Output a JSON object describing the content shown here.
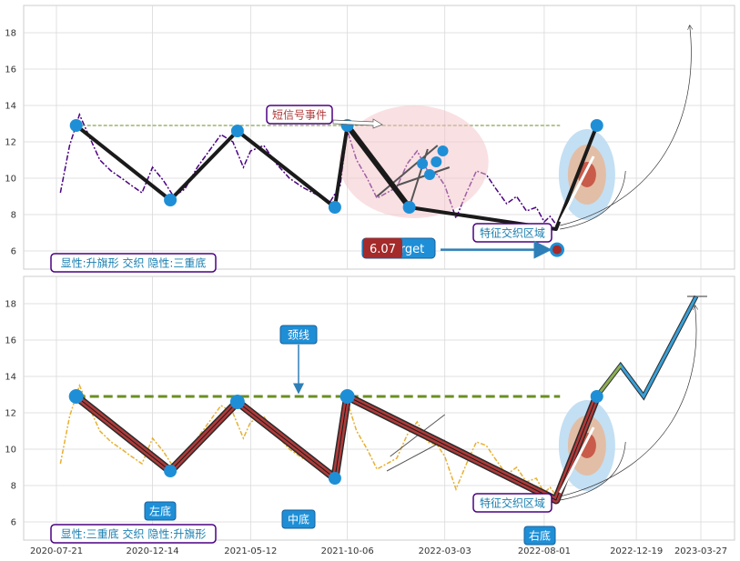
{
  "chart_data": [
    {
      "type": "line",
      "panel": "top",
      "ylim": [
        5,
        19.5
      ],
      "yticks": [
        6,
        8,
        10,
        12,
        14,
        16,
        18
      ],
      "grid": true,
      "colors": {
        "price": "#4b0082",
        "pattern": "#1a1a1a",
        "node": "#1e8fd6",
        "neckline": "#6b8e23",
        "ellipse": "#f4c2c8"
      },
      "series": [
        {
          "x": [
            "2020-07-27",
            "2020-08-10",
            "2020-08-25",
            "2020-09-10",
            "2020-09-25",
            "2020-10-12",
            "2020-10-28",
            "2020-11-12",
            "2020-11-28",
            "2020-12-14",
            "2020-12-30",
            "2021-01-15",
            "2021-02-01",
            "2021-02-20",
            "2021-03-10",
            "2021-03-28",
            "2021-04-15",
            "2021-05-01",
            "2021-05-12",
            "2021-06-01",
            "2021-06-20",
            "2021-07-10",
            "2021-07-30",
            "2021-08-20",
            "2021-09-08",
            "2021-09-25",
            "2021-10-06",
            "2021-10-20",
            "2021-11-05",
            "2021-11-20",
            "2021-12-05",
            "2021-12-20",
            "2022-01-05",
            "2022-01-20",
            "2022-02-05",
            "2022-02-20",
            "2022-03-03",
            "2022-03-20",
            "2022-04-05",
            "2022-04-20",
            "2022-05-05",
            "2022-05-20",
            "2022-06-05",
            "2022-06-20",
            "2022-07-05",
            "2022-07-20",
            "2022-08-01",
            "2022-08-10",
            "2022-08-20"
          ],
          "y": [
            9.2,
            11.8,
            13.5,
            12.2,
            11.0,
            10.4,
            10.0,
            9.6,
            9.2,
            10.6,
            9.9,
            9.0,
            9.4,
            10.6,
            11.5,
            12.4,
            12.0,
            10.6,
            11.5,
            11.8,
            10.8,
            10.0,
            9.5,
            9.1,
            8.6,
            9.6,
            12.6,
            11.0,
            10.0,
            8.9,
            9.2,
            9.5,
            10.8,
            11.5,
            10.4,
            10.2,
            9.6,
            7.8,
            9.2,
            10.4,
            10.2,
            9.4,
            8.6,
            9.0,
            8.2,
            8.4,
            7.6,
            7.9,
            7.4
          ]
        }
      ],
      "pattern_x": [
        "2020-08-20",
        "2021-01-10",
        "2021-04-22",
        "2021-09-17",
        "2021-10-06",
        "2022-01-08",
        "2022-08-19",
        "2022-10-20"
      ],
      "pattern_y": [
        12.9,
        8.8,
        12.6,
        8.4,
        12.9,
        8.4,
        7.2,
        12.9
      ],
      "neckline_y": 12.9,
      "short_signal_label": "短信号事件",
      "target_value": "6.07",
      "target_suffix": "arget",
      "zone_label": "特征交织区域",
      "bottom_label": "显性:升旗形 交织 隐性:三重底"
    },
    {
      "type": "line",
      "panel": "bottom",
      "ylim": [
        5,
        19.5
      ],
      "yticks": [
        6,
        8,
        10,
        12,
        14,
        16,
        18
      ],
      "xticks": [
        "2020-07-21",
        "2020-12-14",
        "2021-05-12",
        "2021-10-06",
        "2022-03-03",
        "2022-08-01",
        "2022-12-19",
        "2023-03-27"
      ],
      "grid": true,
      "colors": {
        "price": "#e8b030",
        "pattern": "#b03a3a",
        "node": "#1e8fd6",
        "neckline": "#6b8e23",
        "projection": "#3aa0d8"
      },
      "series": [
        {
          "x": [
            "2020-07-27",
            "2020-08-10",
            "2020-08-25",
            "2020-09-10",
            "2020-09-25",
            "2020-10-12",
            "2020-10-28",
            "2020-11-12",
            "2020-11-28",
            "2020-12-14",
            "2020-12-30",
            "2021-01-15",
            "2021-02-01",
            "2021-02-20",
            "2021-03-10",
            "2021-03-28",
            "2021-04-15",
            "2021-05-01",
            "2021-05-12",
            "2021-06-01",
            "2021-06-20",
            "2021-07-10",
            "2021-07-30",
            "2021-08-20",
            "2021-09-08",
            "2021-09-25",
            "2021-10-06",
            "2021-10-20",
            "2021-11-05",
            "2021-11-20",
            "2021-12-05",
            "2021-12-20",
            "2022-01-05",
            "2022-01-20",
            "2022-02-05",
            "2022-02-20",
            "2022-03-03",
            "2022-03-20",
            "2022-04-05",
            "2022-04-20",
            "2022-05-05",
            "2022-05-20",
            "2022-06-05",
            "2022-06-20",
            "2022-07-05",
            "2022-07-20",
            "2022-08-01",
            "2022-08-10",
            "2022-08-20"
          ],
          "y": [
            9.2,
            11.8,
            13.5,
            12.2,
            11.0,
            10.4,
            10.0,
            9.6,
            9.2,
            10.6,
            9.9,
            9.0,
            9.4,
            10.6,
            11.5,
            12.4,
            12.0,
            10.6,
            11.5,
            11.8,
            10.8,
            10.0,
            9.5,
            9.1,
            8.6,
            9.6,
            12.6,
            11.0,
            10.0,
            8.9,
            9.2,
            9.5,
            10.8,
            11.5,
            10.4,
            10.2,
            9.6,
            7.8,
            9.2,
            10.4,
            10.2,
            9.4,
            8.6,
            9.0,
            8.2,
            8.4,
            7.6,
            7.9,
            7.4
          ]
        }
      ],
      "pattern_x": [
        "2020-08-20",
        "2021-01-10",
        "2021-04-22",
        "2021-09-17",
        "2021-10-06",
        "2022-08-19",
        "2022-10-20"
      ],
      "pattern_y": [
        12.9,
        8.8,
        12.6,
        8.4,
        12.9,
        7.2,
        12.9
      ],
      "projection_x": [
        "2022-10-20",
        "2022-11-25",
        "2022-12-30",
        "2023-03-20"
      ],
      "projection_y": [
        12.9,
        14.6,
        12.9,
        18.4
      ],
      "neckline_y": 12.9,
      "labels": {
        "left_bottom": "左底",
        "mid_bottom": "中底",
        "right_bottom": "右底",
        "neck": "颈线",
        "zone": "特征交织区域"
      },
      "bottom_label": "显性:三重底 交织 隐性:升旗形"
    }
  ]
}
